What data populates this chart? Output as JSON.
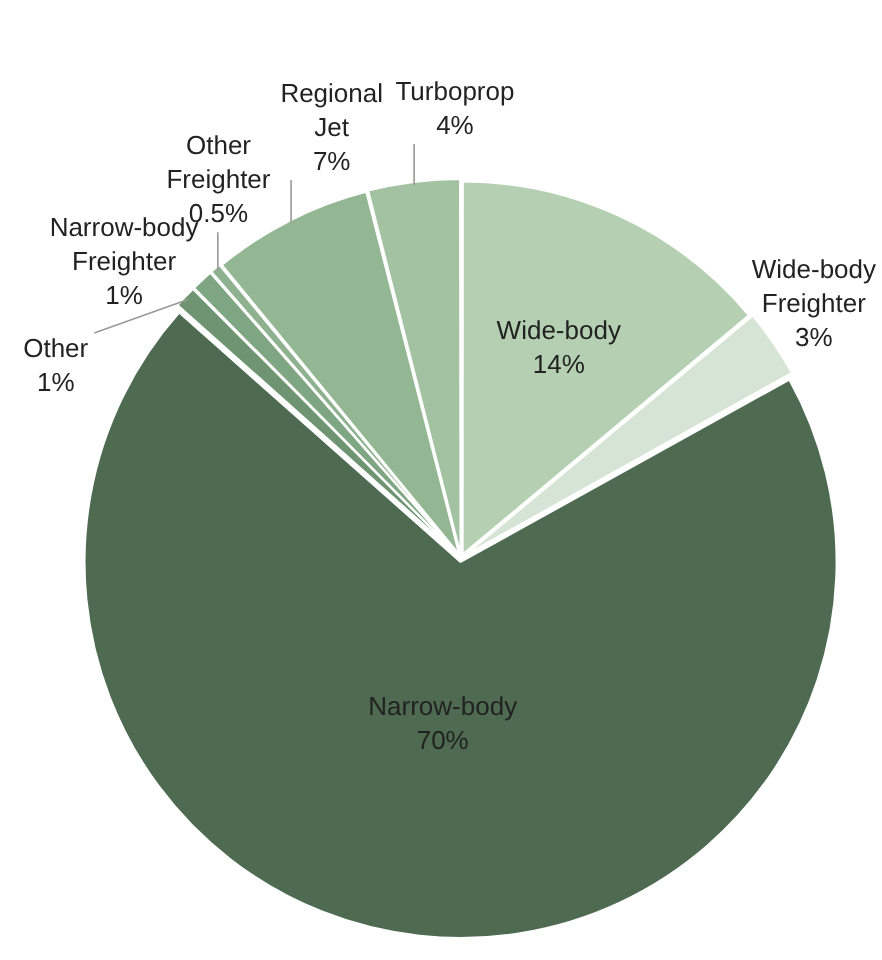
{
  "chart_data": {
    "type": "pie",
    "categories": [
      "Wide-body",
      "Wide-body Freighter",
      "Narrow-body",
      "Other",
      "Narrow-body Freighter",
      "Other Freighter",
      "Regional Jet",
      "Turboprop"
    ],
    "values": [
      14,
      3,
      70,
      1,
      1,
      0.5,
      7,
      4
    ],
    "value_labels": [
      "14%",
      "3%",
      "70%",
      "1%",
      "1%",
      "0.5%",
      "7%",
      "4%"
    ],
    "colors": [
      "#b5cfb3",
      "#d6e4d5",
      "#4e6b52",
      "#6f9472",
      "#7fa683",
      "#8eb28f",
      "#93b693",
      "#a3c2a2"
    ],
    "legend": false
  }
}
